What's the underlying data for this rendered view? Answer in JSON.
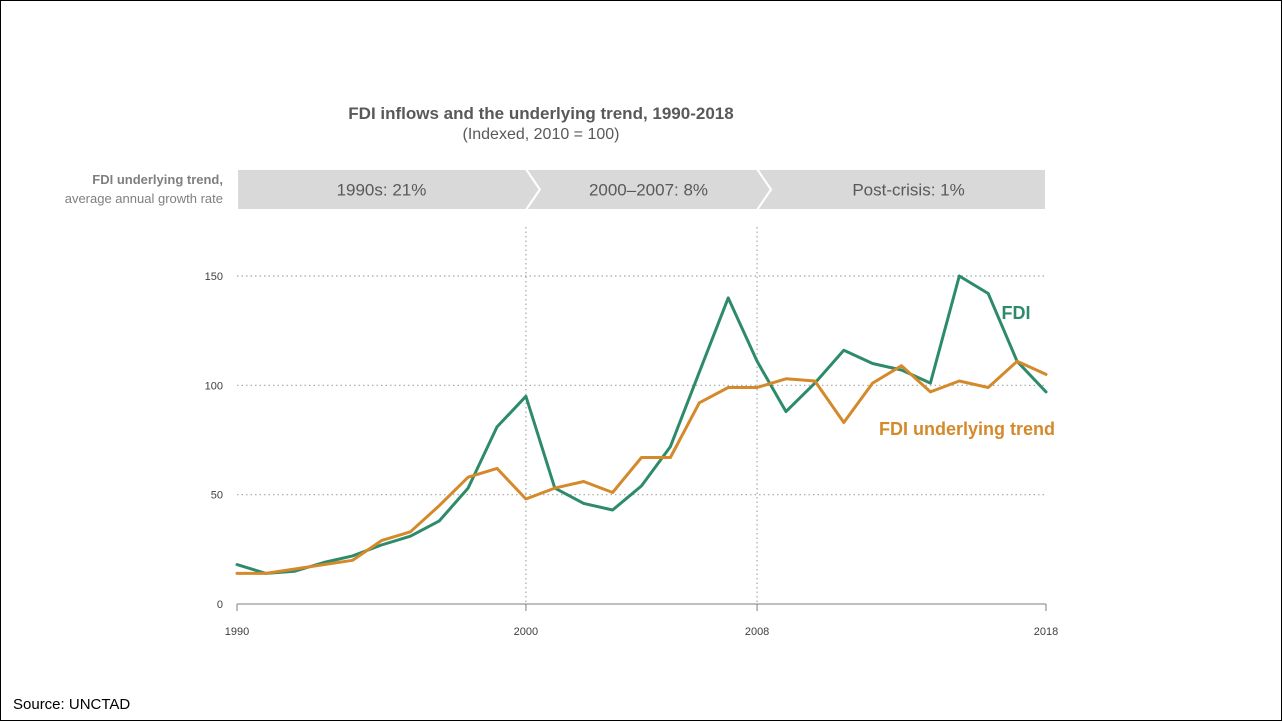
{
  "source_text": "Source:  UNCTAD",
  "trend_label": {
    "line1": "FDI underlying trend,",
    "line2": "average annual growth rate"
  },
  "colors": {
    "fdi": "#2e8b6a",
    "trend": "#d4892b",
    "banner": "#d9d9d9",
    "banner_text": "#595959"
  },
  "chart_data": {
    "type": "line",
    "title": "FDI inflows and the underlying trend, 1990-2018",
    "subtitle": "(Indexed, 2010 = 100)",
    "x": [
      1990,
      1991,
      1992,
      1993,
      1994,
      1995,
      1996,
      1997,
      1998,
      1999,
      2000,
      2001,
      2002,
      2003,
      2004,
      2005,
      2006,
      2007,
      2008,
      2009,
      2010,
      2011,
      2012,
      2013,
      2014,
      2015,
      2016,
      2017,
      2018
    ],
    "xlim": [
      1990,
      2018
    ],
    "ylim": [
      0,
      150
    ],
    "x_ticks": [
      1990,
      2000,
      2008,
      2018
    ],
    "x_tick_labels": [
      "1990",
      "2000",
      "2008",
      "2018"
    ],
    "y_ticks": [
      0,
      50,
      100,
      150
    ],
    "y_tick_labels": [
      "0",
      "50",
      "100",
      "150"
    ],
    "grid": "horizontal dotted",
    "period_dividers": [
      2000,
      2008
    ],
    "series": [
      {
        "name": "FDI",
        "values": [
          18,
          14,
          15,
          19,
          22,
          27,
          31,
          38,
          53,
          81,
          95,
          53,
          46,
          43,
          54,
          72,
          106,
          140,
          111,
          88,
          101,
          116,
          110,
          107,
          101,
          150,
          142,
          111,
          97
        ]
      },
      {
        "name": "FDI underlying trend",
        "values": [
          14,
          14,
          16,
          18,
          20,
          29,
          33,
          45,
          58,
          62,
          48,
          53,
          56,
          51,
          67,
          67,
          92,
          99,
          99,
          103,
          102,
          83,
          101,
          109,
          97,
          102,
          99,
          111,
          105
        ]
      }
    ],
    "periods": [
      {
        "label": "1990s: 21%"
      },
      {
        "label": "2000–2007: 8%"
      },
      {
        "label": "Post-crisis: 1%"
      }
    ]
  }
}
